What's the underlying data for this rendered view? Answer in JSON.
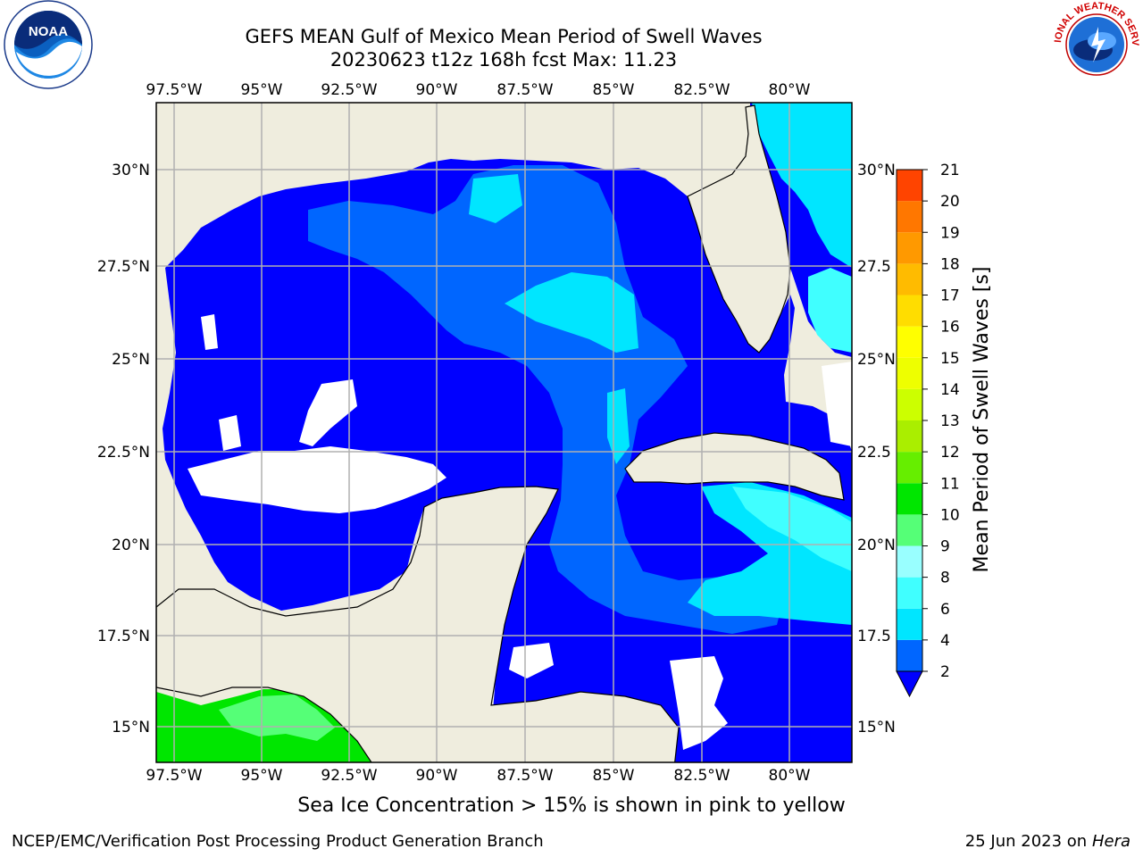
{
  "title": {
    "line1": "GEFS MEAN Gulf of Mexico Mean Period of Swell Waves",
    "line2": "20230623 t12z 168h fcst   Max: 11.23"
  },
  "map": {
    "lon_ticks": [
      "97.5°W",
      "95°W",
      "92.5°W",
      "90°W",
      "87.5°W",
      "85°W",
      "82.5°W",
      "80°W"
    ],
    "lat_ticks": [
      "30°N",
      "27.5°N",
      "25°N",
      "22.5°N",
      "20°N",
      "17.5°N",
      "15°N"
    ],
    "lat_ticks_right": [
      "30°N",
      "27.5",
      "25°N",
      "22.5",
      "20°N",
      "17.5",
      "15°N"
    ],
    "land_color": "#efedde",
    "ocean_color": "#0000ff",
    "grid_color": "#b0b0b0"
  },
  "colorbar": {
    "label": "Mean Period of Swell Waves [s]",
    "ticks": [
      "2",
      "4",
      "6",
      "8",
      "9",
      "10",
      "11",
      "12",
      "13",
      "14",
      "15",
      "16",
      "17",
      "18",
      "19",
      "20",
      "21"
    ],
    "colors": [
      "#0066ff",
      "#00e6ff",
      "#40ffff",
      "#99ffff",
      "#55ff77",
      "#00e600",
      "#66ee00",
      "#aaee00",
      "#ccff00",
      "#eeff00",
      "#ffff00",
      "#ffdd00",
      "#ffbb00",
      "#ff9900",
      "#ff7700",
      "#ff4400",
      "#ff1100"
    ],
    "extend_color": "#0000ff"
  },
  "logos": {
    "noaa_text": "NOAA",
    "nws_text": "NATIONAL WEATHER SERVICE"
  },
  "footer": {
    "sea_ice_note": "Sea Ice Concentration > 15% is shown in pink to yellow",
    "credit": "NCEP/EMC/Verification Post Processing Product Generation Branch",
    "date": "25 Jun 2023 on",
    "host": "Hera"
  }
}
